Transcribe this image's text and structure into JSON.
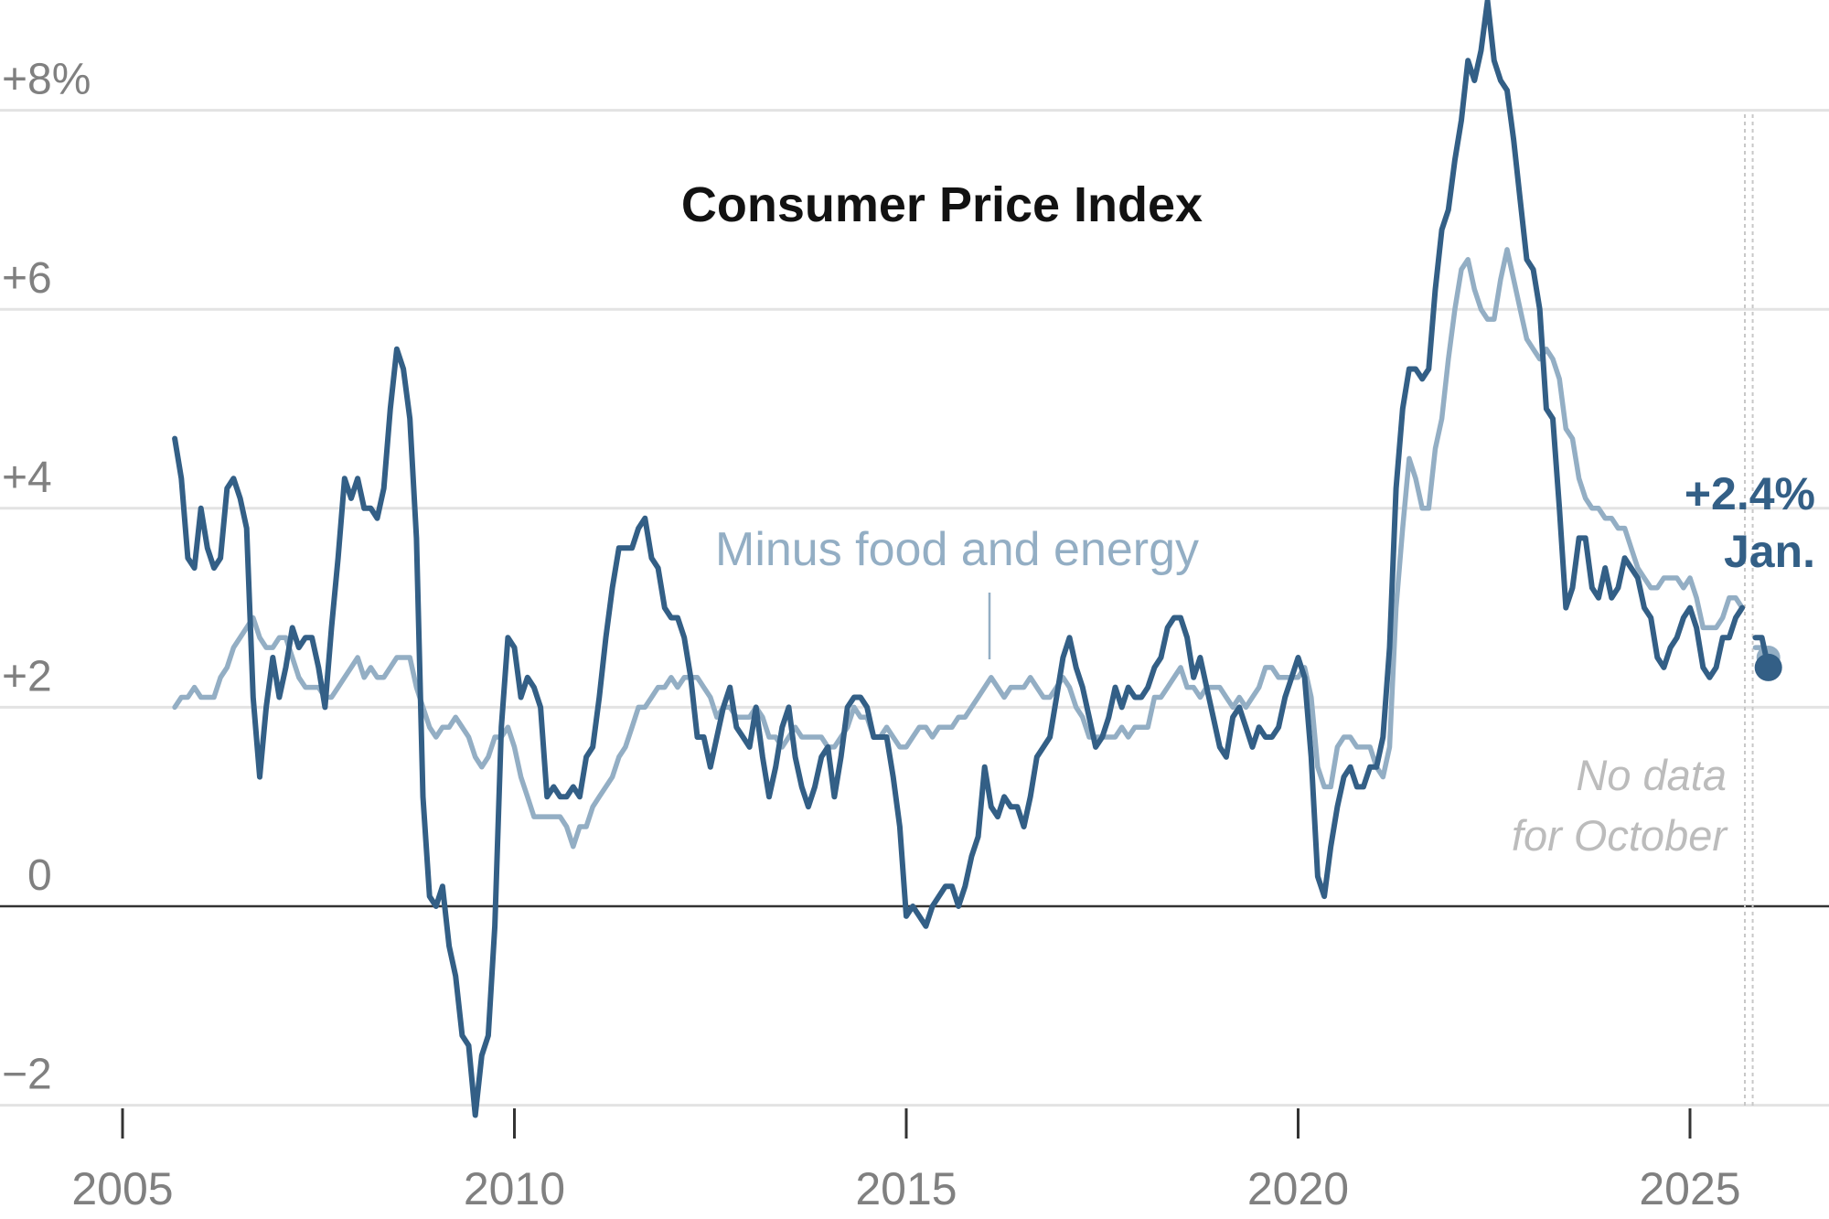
{
  "chart_data": {
    "type": "line",
    "title": "Consumer Price Index",
    "xlabel": "",
    "ylabel": "",
    "x_ticks": [
      "2005",
      "2010",
      "2015",
      "2020",
      "2025"
    ],
    "y_ticks": [
      "+8%",
      "+6",
      "+4",
      "+2",
      "0",
      "−2"
    ],
    "y_tick_values": [
      8,
      6,
      4,
      2,
      0,
      -2
    ],
    "ylim": [
      -2.2,
      9.1
    ],
    "xlim": [
      "2004-01",
      "2026-12"
    ],
    "grid": true,
    "frequency": "monthly",
    "start_month": "2005-09",
    "series": [
      {
        "id": "headline",
        "color": "#335f86",
        "values": [
          4.7,
          4.3,
          3.5,
          3.4,
          4.0,
          3.6,
          3.4,
          3.5,
          4.2,
          4.3,
          4.1,
          3.8,
          2.1,
          1.3,
          2.0,
          2.5,
          2.1,
          2.4,
          2.8,
          2.6,
          2.7,
          2.7,
          2.4,
          2.0,
          2.8,
          3.5,
          4.3,
          4.1,
          4.3,
          4.0,
          4.0,
          3.9,
          4.2,
          5.0,
          5.6,
          5.4,
          4.9,
          3.7,
          1.1,
          0.1,
          0.0,
          0.2,
          -0.4,
          -0.7,
          -1.3,
          -1.4,
          -2.1,
          -1.5,
          -1.3,
          -0.2,
          1.8,
          2.7,
          2.6,
          2.1,
          2.3,
          2.2,
          2.0,
          1.1,
          1.2,
          1.1,
          1.1,
          1.2,
          1.1,
          1.5,
          1.6,
          2.1,
          2.7,
          3.2,
          3.6,
          3.6,
          3.6,
          3.8,
          3.9,
          3.5,
          3.4,
          3.0,
          2.9,
          2.9,
          2.7,
          2.3,
          1.7,
          1.7,
          1.4,
          1.7,
          2.0,
          2.2,
          1.8,
          1.7,
          1.6,
          2.0,
          1.5,
          1.1,
          1.4,
          1.8,
          2.0,
          1.5,
          1.2,
          1.0,
          1.2,
          1.5,
          1.6,
          1.1,
          1.5,
          2.0,
          2.1,
          2.1,
          2.0,
          1.7,
          1.7,
          1.7,
          1.3,
          0.8,
          -0.1,
          0.0,
          -0.1,
          -0.2,
          0.0,
          0.1,
          0.2,
          0.2,
          0.0,
          0.2,
          0.5,
          0.7,
          1.4,
          1.0,
          0.9,
          1.1,
          1.0,
          1.0,
          0.8,
          1.1,
          1.5,
          1.6,
          1.7,
          2.1,
          2.5,
          2.7,
          2.4,
          2.2,
          1.9,
          1.6,
          1.7,
          1.9,
          2.2,
          2.0,
          2.2,
          2.1,
          2.1,
          2.2,
          2.4,
          2.5,
          2.8,
          2.9,
          2.9,
          2.7,
          2.3,
          2.5,
          2.2,
          1.9,
          1.6,
          1.5,
          1.9,
          2.0,
          1.8,
          1.6,
          1.8,
          1.7,
          1.7,
          1.8,
          2.1,
          2.3,
          2.5,
          2.3,
          1.5,
          0.3,
          0.1,
          0.6,
          1.0,
          1.3,
          1.4,
          1.2,
          1.2,
          1.4,
          1.4,
          1.7,
          2.6,
          4.2,
          5.0,
          5.4,
          5.4,
          5.3,
          5.4,
          6.2,
          6.8,
          7.0,
          7.5,
          7.9,
          8.5,
          8.3,
          8.6,
          9.1,
          8.5,
          8.3,
          8.2,
          7.7,
          7.1,
          6.5,
          6.4,
          6.0,
          5.0,
          4.9,
          4.0,
          3.0,
          3.2,
          3.7,
          3.7,
          3.2,
          3.1,
          3.4,
          3.1,
          3.2,
          3.5,
          3.4,
          3.3,
          3.0,
          2.9,
          2.5,
          2.4,
          2.6,
          2.7,
          2.9,
          3.0,
          2.8,
          2.4,
          2.3,
          2.4,
          2.7,
          2.7,
          2.9,
          3.0,
          null,
          2.7,
          2.7,
          2.4
        ]
      },
      {
        "id": "core",
        "name": "Minus food and energy",
        "color": "#93aec4",
        "values": [
          2.0,
          2.1,
          2.1,
          2.2,
          2.1,
          2.1,
          2.1,
          2.3,
          2.4,
          2.6,
          2.7,
          2.8,
          2.9,
          2.7,
          2.6,
          2.6,
          2.7,
          2.7,
          2.5,
          2.3,
          2.2,
          2.2,
          2.2,
          2.1,
          2.1,
          2.2,
          2.3,
          2.4,
          2.5,
          2.3,
          2.4,
          2.3,
          2.3,
          2.4,
          2.5,
          2.5,
          2.5,
          2.2,
          2.0,
          1.8,
          1.7,
          1.8,
          1.8,
          1.9,
          1.8,
          1.7,
          1.5,
          1.4,
          1.5,
          1.7,
          1.7,
          1.8,
          1.6,
          1.3,
          1.1,
          0.9,
          0.9,
          0.9,
          0.9,
          0.9,
          0.8,
          0.6,
          0.8,
          0.8,
          1.0,
          1.1,
          1.2,
          1.3,
          1.5,
          1.6,
          1.8,
          2.0,
          2.0,
          2.1,
          2.2,
          2.2,
          2.3,
          2.2,
          2.3,
          2.3,
          2.3,
          2.2,
          2.1,
          1.9,
          2.0,
          2.0,
          1.9,
          1.9,
          1.9,
          2.0,
          1.9,
          1.7,
          1.7,
          1.6,
          1.7,
          1.8,
          1.7,
          1.7,
          1.7,
          1.7,
          1.6,
          1.6,
          1.7,
          1.8,
          2.0,
          1.9,
          1.9,
          1.7,
          1.7,
          1.8,
          1.7,
          1.6,
          1.6,
          1.7,
          1.8,
          1.8,
          1.7,
          1.8,
          1.8,
          1.8,
          1.9,
          1.9,
          2.0,
          2.1,
          2.2,
          2.3,
          2.2,
          2.1,
          2.2,
          2.2,
          2.2,
          2.3,
          2.2,
          2.1,
          2.1,
          2.2,
          2.3,
          2.2,
          2.0,
          1.9,
          1.7,
          1.7,
          1.7,
          1.7,
          1.7,
          1.8,
          1.7,
          1.8,
          1.8,
          1.8,
          2.1,
          2.1,
          2.2,
          2.3,
          2.4,
          2.2,
          2.2,
          2.1,
          2.2,
          2.2,
          2.2,
          2.1,
          2.0,
          2.1,
          2.0,
          2.1,
          2.2,
          2.4,
          2.4,
          2.3,
          2.3,
          2.3,
          2.3,
          2.4,
          2.1,
          1.4,
          1.2,
          1.2,
          1.6,
          1.7,
          1.7,
          1.6,
          1.6,
          1.6,
          1.4,
          1.3,
          1.6,
          3.0,
          3.8,
          4.5,
          4.3,
          4.0,
          4.0,
          4.6,
          4.9,
          5.5,
          6.0,
          6.4,
          6.5,
          6.2,
          6.0,
          5.9,
          5.9,
          6.3,
          6.6,
          6.3,
          6.0,
          5.7,
          5.6,
          5.5,
          5.6,
          5.5,
          5.3,
          4.8,
          4.7,
          4.3,
          4.1,
          4.0,
          4.0,
          3.9,
          3.9,
          3.8,
          3.8,
          3.6,
          3.4,
          3.3,
          3.2,
          3.2,
          3.3,
          3.3,
          3.3,
          3.2,
          3.3,
          3.1,
          2.8,
          2.8,
          2.8,
          2.9,
          3.1,
          3.1,
          3.0,
          null,
          2.6,
          2.6,
          2.5
        ]
      }
    ],
    "annotations": {
      "latest_value": "+2.4%",
      "latest_month": "Jan.",
      "gap_note_line1": "No data",
      "gap_note_line2": "for October",
      "missing_month": "2025-10"
    }
  }
}
